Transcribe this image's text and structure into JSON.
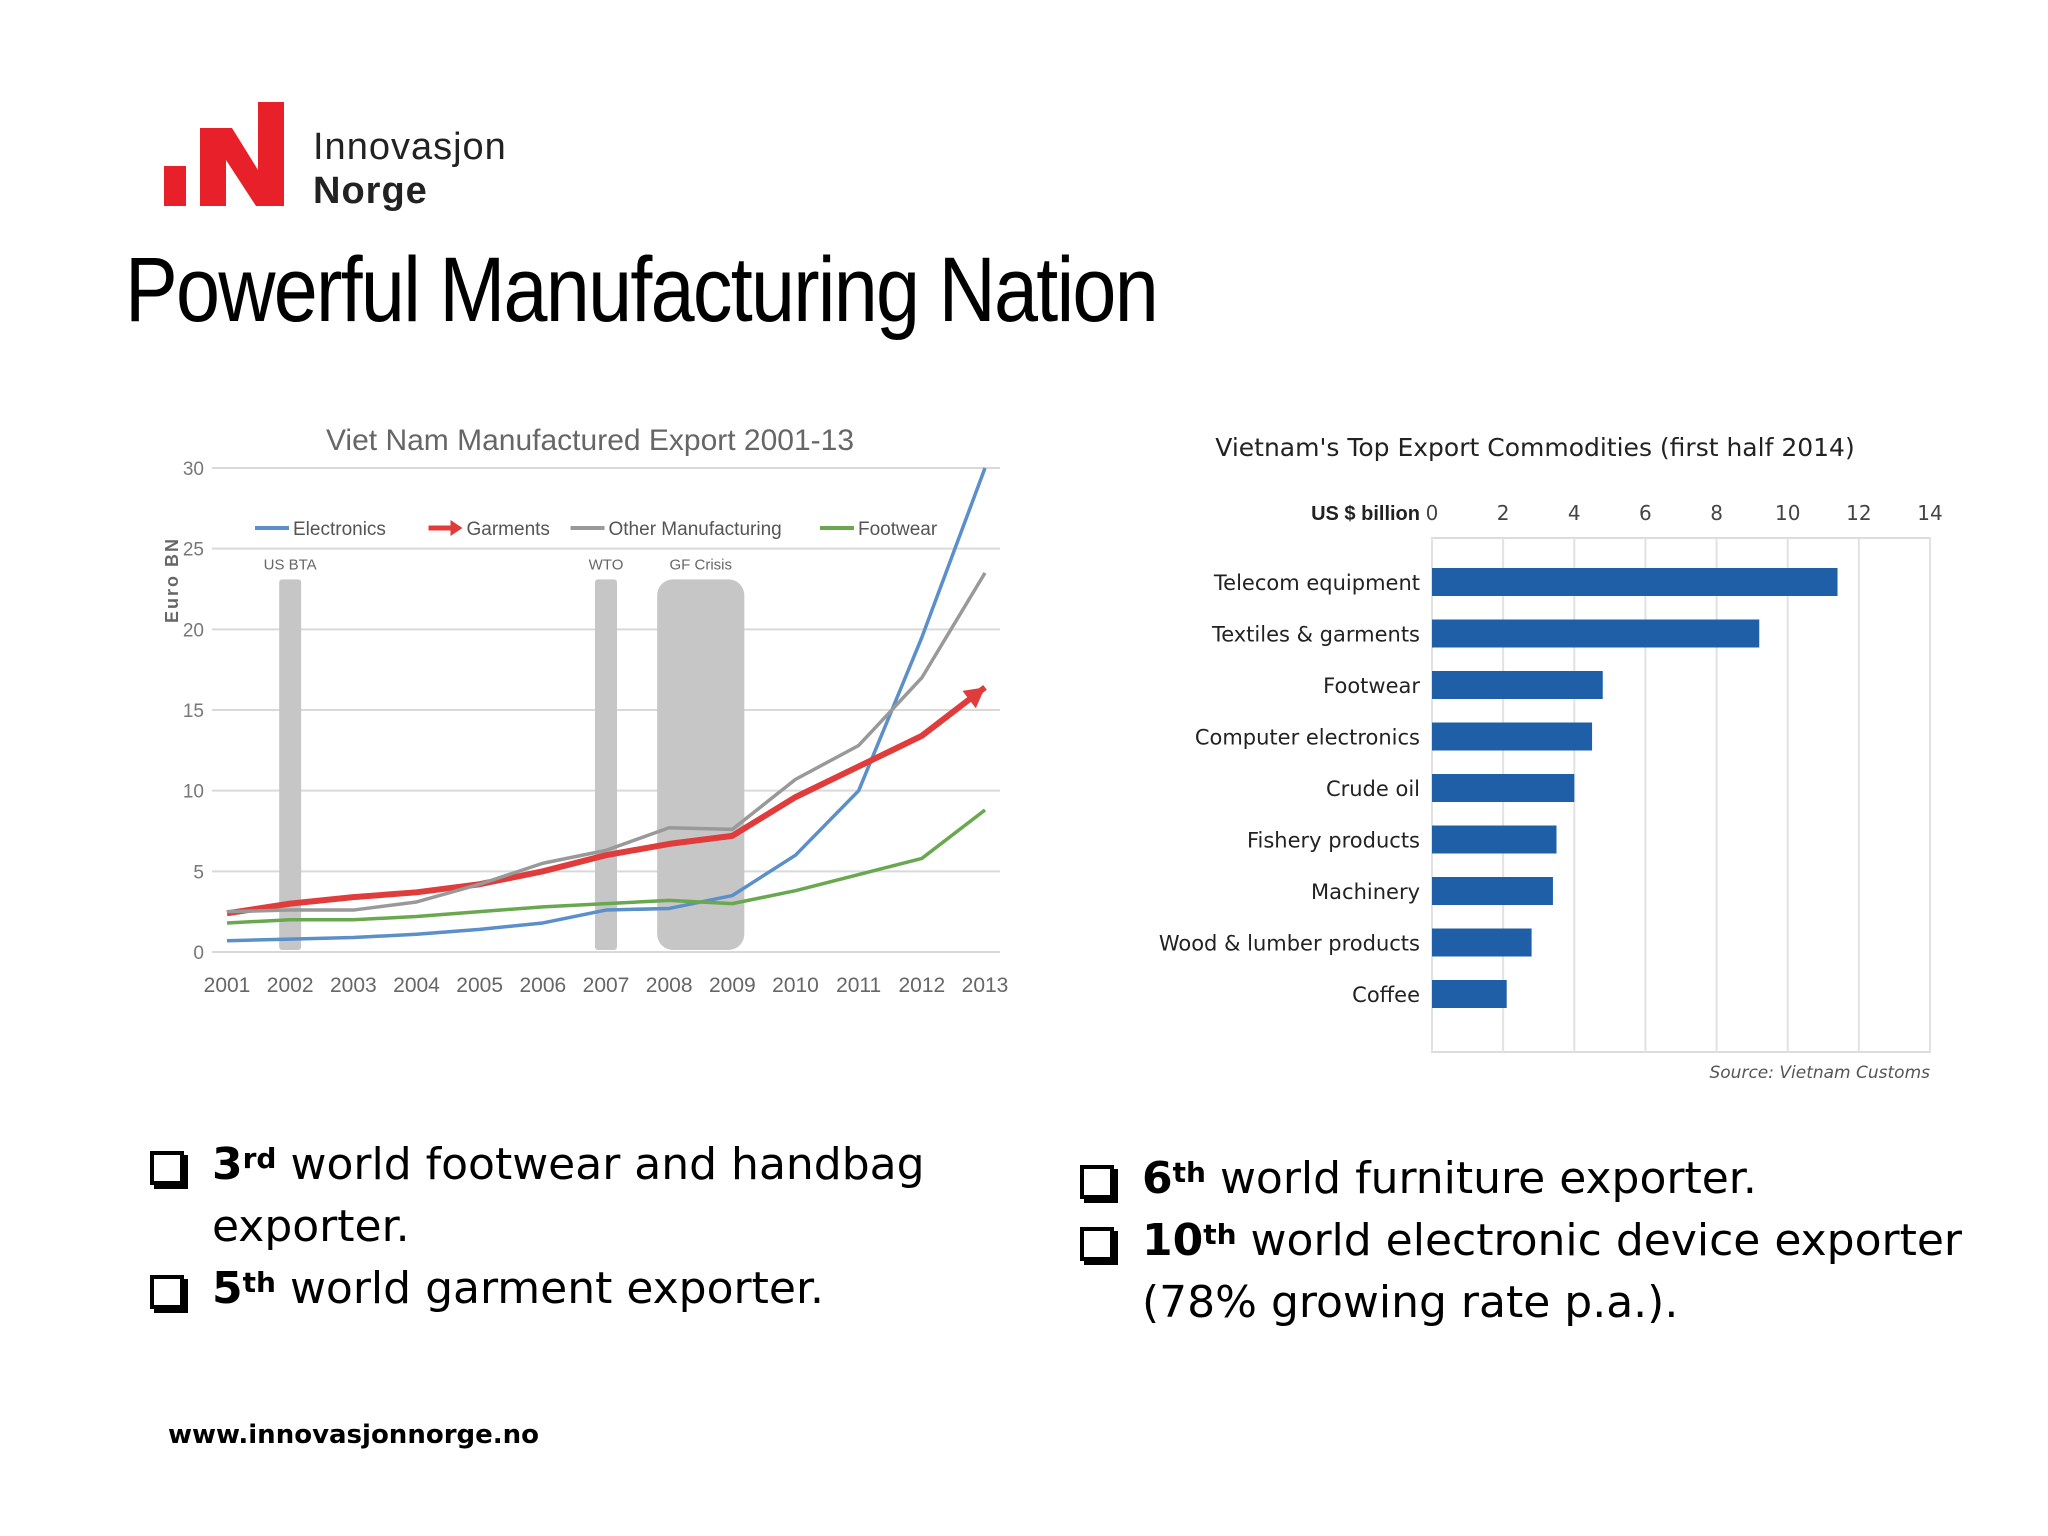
{
  "brand": {
    "line1": "Innovasjon",
    "line2": "Norge",
    "accent": "#e8202a"
  },
  "title": "Powerful Manufacturing Nation",
  "chart_data": [
    {
      "type": "line",
      "title": "Viet Nam Manufactured Export 2001-13",
      "ylabel": "Euro BN",
      "xlabel": "",
      "x": [
        "2001",
        "2002",
        "2003",
        "2004",
        "2005",
        "2006",
        "2007",
        "2008",
        "2009",
        "2010",
        "2011",
        "2012",
        "2013"
      ],
      "ylim": [
        0,
        30
      ],
      "yticks": [
        0,
        5,
        10,
        15,
        20,
        25,
        30
      ],
      "grid": true,
      "legend": "top",
      "series": [
        {
          "name": "Electronics",
          "color": "#5b8fc9",
          "values": [
            0.7,
            0.8,
            0.9,
            1.1,
            1.4,
            1.8,
            2.6,
            2.7,
            3.5,
            6.0,
            10.0,
            19.5,
            30.0
          ]
        },
        {
          "name": "Garments",
          "color": "#e03c3c",
          "values": [
            2.4,
            3.0,
            3.4,
            3.7,
            4.2,
            5.0,
            6.0,
            6.7,
            7.2,
            9.6,
            11.5,
            13.4,
            16.4
          ]
        },
        {
          "name": "Other Manufacturing",
          "color": "#999999",
          "values": [
            2.5,
            2.6,
            2.6,
            3.1,
            4.2,
            5.5,
            6.3,
            7.7,
            7.6,
            10.7,
            12.8,
            17.0,
            23.5
          ]
        },
        {
          "name": "Footwear",
          "color": "#6aa84f",
          "values": [
            1.8,
            2.0,
            2.0,
            2.2,
            2.5,
            2.8,
            3.0,
            3.2,
            3.0,
            3.8,
            4.8,
            5.8,
            8.8
          ]
        }
      ],
      "annotations": [
        {
          "label": "US BTA",
          "x_from": "2002",
          "x_to": "2002"
        },
        {
          "label": "WTO",
          "x_from": "2007",
          "x_to": "2007"
        },
        {
          "label": "GF Crisis",
          "x_from": "2008",
          "x_to": "2009"
        }
      ]
    },
    {
      "type": "bar",
      "orientation": "horizontal",
      "title": "Vietnam's Top Export Commodities (first half 2014)",
      "xlabel": "US $ billion",
      "xlim": [
        0,
        14
      ],
      "xticks": [
        0,
        2,
        4,
        6,
        8,
        10,
        12,
        14
      ],
      "categories": [
        "Telecom equipment",
        "Textiles & garments",
        "Footwear",
        "Computer electronics",
        "Crude oil",
        "Fishery products",
        "Machinery",
        "Wood & lumber products",
        "Coffee"
      ],
      "values": [
        11.4,
        9.2,
        4.8,
        4.5,
        4.0,
        3.5,
        3.4,
        2.8,
        2.1
      ],
      "color": "#1f5fa8",
      "grid": true,
      "source": "Source: Vietnam Customs"
    }
  ],
  "bullets_left": [
    {
      "num": "3",
      "sup": "rd",
      "text": " world footwear and handbag exporter."
    },
    {
      "num": "5",
      "sup": "th",
      "text": " world garment exporter."
    }
  ],
  "bullets_right": [
    {
      "num": "6",
      "sup": "th",
      "text": " world furniture exporter."
    },
    {
      "num": "10",
      "sup": "th",
      "text": " world electronic device exporter (78% growing rate p.a.)."
    }
  ],
  "footer": {
    "url": "www.innovasjonnorge.no"
  }
}
